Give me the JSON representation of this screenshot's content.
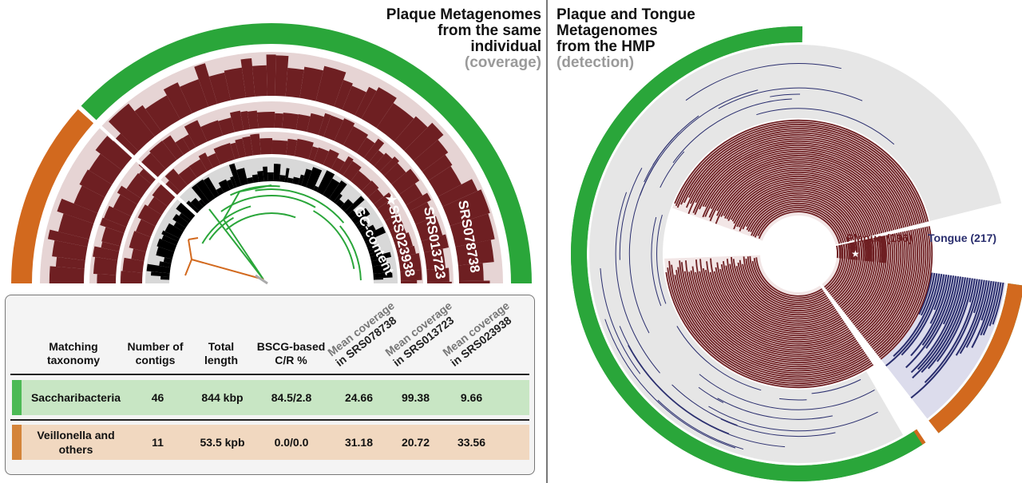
{
  "left_panel": {
    "title_lines": [
      "Plaque Metagenomes",
      "from the same",
      "individual"
    ],
    "subtitle": "(coverage)",
    "ring_labels": [
      "SRS078738",
      "SRS013723",
      "★SRS023938",
      "GC-content"
    ]
  },
  "right_panel": {
    "title_lines": [
      "Plaque and Tongue",
      "Metagenomes",
      "from the HMP"
    ],
    "subtitle": "(detection)",
    "plaque_label": "Plaque (196)",
    "tongue_label": "Tongue (217)"
  },
  "table": {
    "headers": {
      "taxonomy": [
        "Matching",
        "taxonomy"
      ],
      "contigs": [
        "Number of",
        "contigs"
      ],
      "length": [
        "Total",
        "length"
      ],
      "cr": [
        "BSCG-based",
        "C/R %"
      ],
      "cov1": [
        "Mean coverage",
        "in SRS078738"
      ],
      "cov2": [
        "Mean coverage",
        "in SRS013723"
      ],
      "cov3": [
        "Mean coverage",
        "in SRS023938"
      ]
    },
    "rows": [
      {
        "taxonomy": "Saccharibacteria",
        "contigs": "46",
        "length": "844 kbp",
        "cr": "84.5/2.8",
        "cov1": "24.66",
        "cov2": "99.38",
        "cov3": "9.66",
        "color": "#4cba55",
        "bg": "#c8e6c4"
      },
      {
        "taxonomy": "Veillonella and others",
        "contigs": "11",
        "length": "53.5 kpb",
        "cr": "0.0/0.0",
        "cov1": "31.18",
        "cov2": "20.72",
        "cov3": "33.56",
        "color": "#d4843a",
        "bg": "#f1d8c0"
      }
    ]
  },
  "colors": {
    "green": "#2aa63a",
    "orange": "#d2691e",
    "maroon": "#6e1f22",
    "maroon_bg": "#e6d4d4",
    "navy": "#2a2e6e",
    "navy_bg": "#dcdcec",
    "gray_bg": "#e6e6e6"
  }
}
